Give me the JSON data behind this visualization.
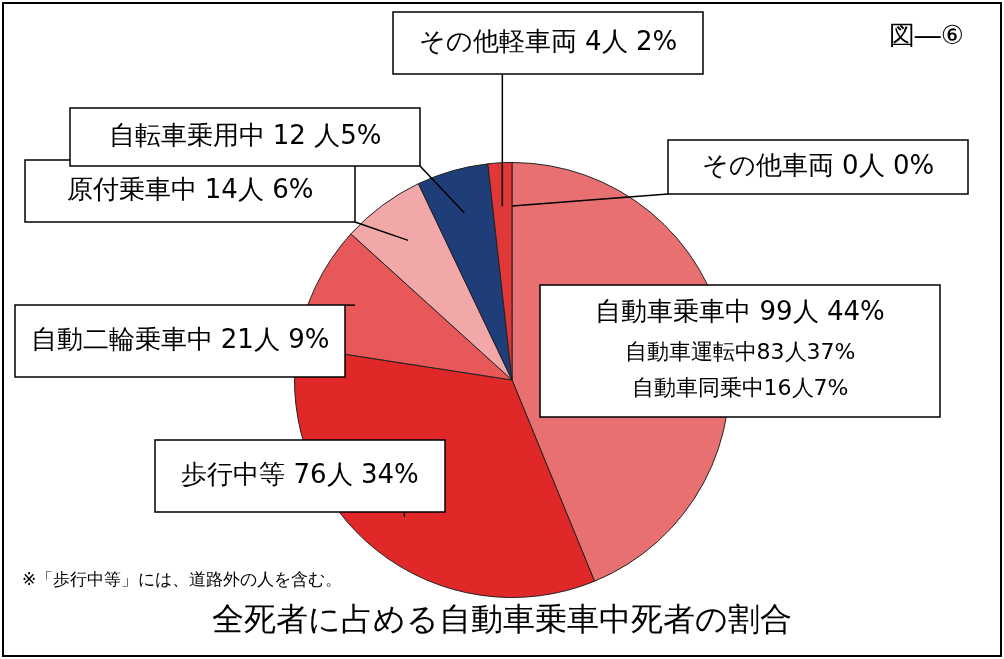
{
  "chart_data": {
    "type": "pie",
    "title": "全死者に占める自動車乗車中死者の割合",
    "categories": [
      "その他車両",
      "自動車乗車中",
      "歩行中等",
      "自動二輪乗車中",
      "原付乗車中",
      "自転車乗用中",
      "その他軽車両"
    ],
    "values": [
      0,
      99,
      76,
      21,
      14,
      12,
      4
    ],
    "value_labels": [
      "0人 0%",
      "99人 44%",
      "76人 34%",
      "21人 9%",
      "14人 6%",
      "12 人5%",
      "4人 2%"
    ],
    "colors": [
      "#e03030",
      "#e87070",
      "#e02828",
      "#e85858",
      "#f2a8a8",
      "#1f3d78",
      "#e03838"
    ],
    "annotations": [
      "図―⑥",
      "自動車運転中83人37%",
      "自動車同乗中16人7%",
      "※「歩行中等」には、道路外の人を含む。"
    ],
    "legend": false
  }
}
